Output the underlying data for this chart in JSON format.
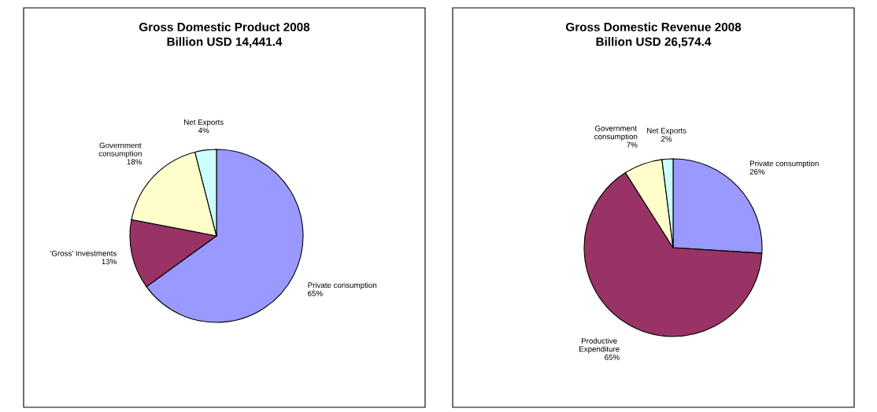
{
  "chart_data": [
    {
      "type": "pie",
      "title": "Gross Domestic Product 2008\nBillion USD 14,441.4",
      "categories": [
        "Private consumption",
        "'Gross' Investments",
        "Government\nconsumption",
        "Net Exports"
      ],
      "values": [
        65,
        13,
        18,
        4
      ],
      "colors": [
        "#9999ff",
        "#993366",
        "#ffffcc",
        "#ccffff"
      ],
      "value_labels": [
        "65%",
        "13%",
        "18%",
        "4%"
      ]
    },
    {
      "type": "pie",
      "title": "Gross Domestic Revenue 2008\nBillion USD 26,574.4",
      "categories": [
        "Private consumption",
        "Productive\nExpenditure",
        "Government\nconsumption",
        "Net Exports"
      ],
      "values": [
        26,
        65,
        7,
        2
      ],
      "colors": [
        "#9999ff",
        "#993366",
        "#ffffcc",
        "#ccffff"
      ],
      "value_labels": [
        "26%",
        "65%",
        "7%",
        "2%"
      ]
    }
  ]
}
